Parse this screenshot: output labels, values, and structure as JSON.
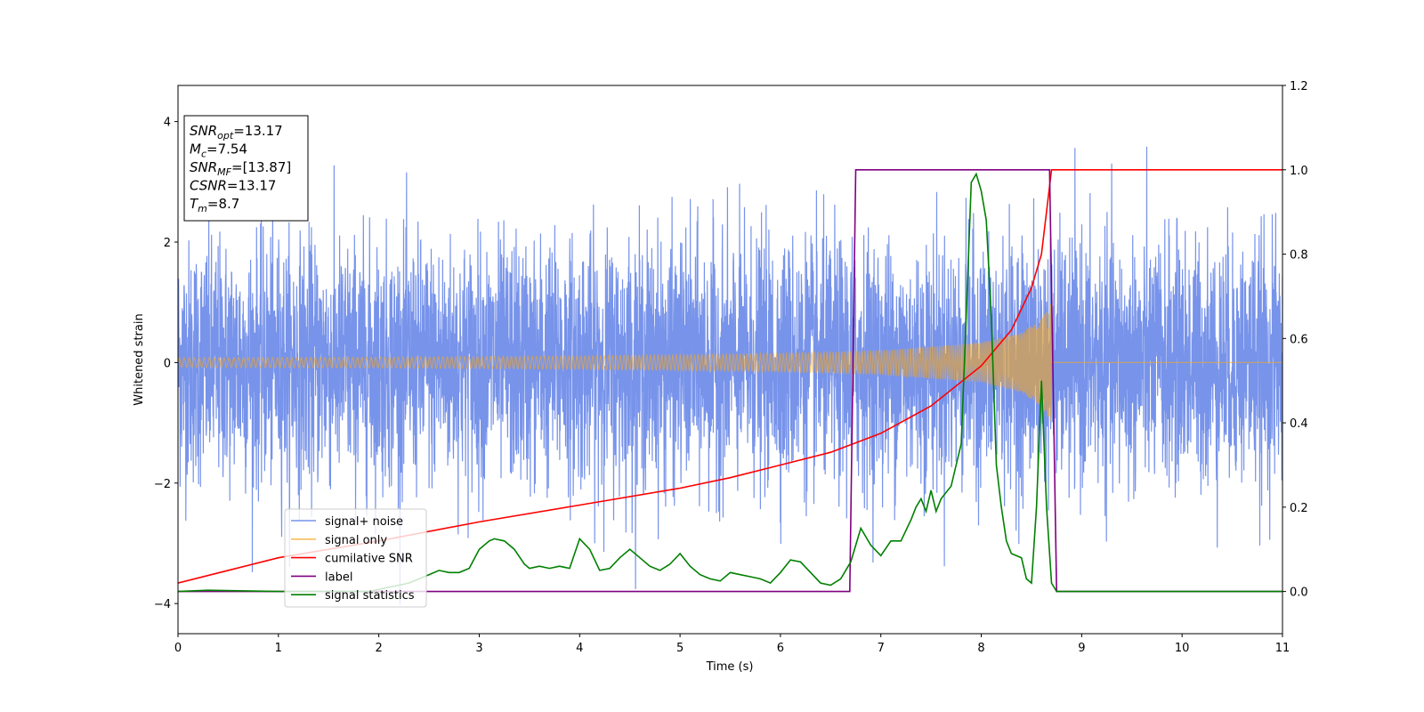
{
  "chart_data": {
    "type": "line",
    "title": "",
    "xlabel": "Time (s)",
    "ylabel": "Whitened strain",
    "y2label": "",
    "xlim": [
      0,
      11
    ],
    "ylim": [
      -4.5,
      4.6
    ],
    "y2lim": [
      -0.1,
      1.2
    ],
    "xticks": [
      0,
      1,
      2,
      3,
      4,
      5,
      6,
      7,
      8,
      9,
      10,
      11
    ],
    "yticks": [
      -4,
      -2,
      0,
      2,
      4
    ],
    "y2ticks": [
      0.0,
      0.2,
      0.4,
      0.6,
      0.8,
      1.0,
      1.2
    ],
    "grid": false,
    "legend_position": "bottom-left",
    "stats": [
      {
        "main": "SNR",
        "sub": "opt",
        "value": "=13.17"
      },
      {
        "main": "M",
        "sub": "c",
        "value": "=7.54"
      },
      {
        "main": "SNR",
        "sub": "MF",
        "value": "=[13.87]"
      },
      {
        "main": "CSNR",
        "sub": "",
        "value": "=13.17"
      },
      {
        "main": "T",
        "sub": "m",
        "value": "=8.7"
      }
    ],
    "series": [
      {
        "name": "signal+ noise",
        "axis": "left",
        "color": "#4a6fe3",
        "noise_std": 1.0,
        "noise_range": [
          -4.1,
          4.2
        ]
      },
      {
        "name": "signal only",
        "axis": "left",
        "color": "#f5a623",
        "envelope": {
          "x": [
            0,
            2,
            4,
            6,
            7,
            8,
            8.4,
            8.6,
            8.7,
            8.71,
            11
          ],
          "amp": [
            0.08,
            0.09,
            0.11,
            0.15,
            0.2,
            0.33,
            0.5,
            0.72,
            1.0,
            0,
            0
          ]
        }
      },
      {
        "name": "cumilative SNR",
        "axis": "right",
        "color": "#ff0000",
        "x": [
          0,
          1,
          2,
          3,
          4,
          5,
          5.5,
          6,
          6.5,
          7,
          7.5,
          8,
          8.3,
          8.5,
          8.6,
          8.7,
          11
        ],
        "y": [
          0.02,
          0.08,
          0.12,
          0.165,
          0.205,
          0.245,
          0.27,
          0.3,
          0.33,
          0.375,
          0.44,
          0.535,
          0.62,
          0.72,
          0.8,
          1.0,
          1.0
        ]
      },
      {
        "name": "label",
        "axis": "right",
        "color": "#800080",
        "x": [
          0,
          6.69,
          6.75,
          8.68,
          8.75,
          11
        ],
        "y": [
          0,
          0,
          1,
          1,
          0,
          0
        ]
      },
      {
        "name": "signal statistics",
        "axis": "right",
        "color": "#008000",
        "x": [
          0,
          0.3,
          1,
          1.9,
          2.1,
          2.3,
          2.5,
          2.6,
          2.7,
          2.8,
          2.9,
          3.0,
          3.1,
          3.15,
          3.25,
          3.35,
          3.45,
          3.5,
          3.6,
          3.7,
          3.8,
          3.9,
          4.0,
          4.1,
          4.2,
          4.3,
          4.4,
          4.5,
          4.6,
          4.7,
          4.8,
          4.9,
          5.0,
          5.1,
          5.2,
          5.3,
          5.4,
          5.5,
          5.6,
          5.7,
          5.8,
          5.9,
          6.0,
          6.1,
          6.2,
          6.3,
          6.4,
          6.5,
          6.6,
          6.7,
          6.8,
          6.9,
          7.0,
          7.1,
          7.2,
          7.3,
          7.35,
          7.4,
          7.45,
          7.5,
          7.55,
          7.6,
          7.7,
          7.75,
          7.8,
          7.85,
          7.9,
          7.95,
          8.0,
          8.05,
          8.1,
          8.15,
          8.2,
          8.25,
          8.3,
          8.4,
          8.45,
          8.5,
          8.55,
          8.6,
          8.65,
          8.7,
          8.75,
          11
        ],
        "y": [
          0.0,
          0.003,
          0.0,
          0.0,
          0.01,
          0.02,
          0.04,
          0.05,
          0.045,
          0.045,
          0.055,
          0.1,
          0.12,
          0.125,
          0.12,
          0.1,
          0.065,
          0.055,
          0.06,
          0.055,
          0.06,
          0.055,
          0.125,
          0.1,
          0.05,
          0.055,
          0.08,
          0.1,
          0.08,
          0.06,
          0.05,
          0.065,
          0.09,
          0.06,
          0.04,
          0.03,
          0.025,
          0.045,
          0.04,
          0.035,
          0.03,
          0.02,
          0.045,
          0.075,
          0.07,
          0.045,
          0.02,
          0.015,
          0.03,
          0.07,
          0.15,
          0.11,
          0.085,
          0.12,
          0.12,
          0.17,
          0.2,
          0.22,
          0.19,
          0.24,
          0.19,
          0.22,
          0.25,
          0.3,
          0.35,
          0.65,
          0.97,
          0.99,
          0.95,
          0.88,
          0.65,
          0.3,
          0.2,
          0.12,
          0.09,
          0.08,
          0.03,
          0.02,
          0.2,
          0.5,
          0.2,
          0.02,
          0.0,
          0.0
        ]
      }
    ]
  }
}
